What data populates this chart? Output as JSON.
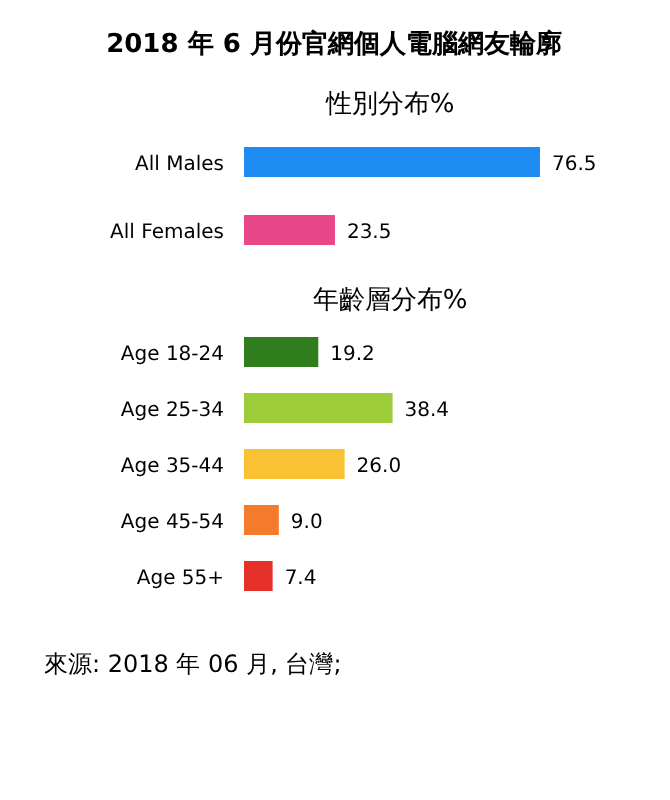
{
  "chart_data": [
    {
      "type": "bar",
      "orientation": "horizontal",
      "title": "2018 年 6 月份官網個人電腦網友輪廓",
      "subtitle": "性別分布%",
      "categories": [
        "All Males",
        "All Females"
      ],
      "values": [
        76.5,
        23.5
      ],
      "value_labels": [
        "76.5",
        "23.5"
      ],
      "colors": [
        "#1e8cf0",
        "#e8488a"
      ]
    },
    {
      "type": "bar",
      "orientation": "horizontal",
      "title": "年齡層分布%",
      "categories": [
        "Age 18-24",
        "Age 25-34",
        "Age 35-44",
        "Age 45-54",
        "Age 55+"
      ],
      "values": [
        19.2,
        38.4,
        26.0,
        9.0,
        7.4
      ],
      "value_labels": [
        "19.2",
        "38.4",
        "26.0",
        "9.0",
        "7.4"
      ],
      "colors": [
        "#2f7d1c",
        "#9dcc3a",
        "#f8c234",
        "#f47a2c",
        "#e5302a"
      ],
      "annotations": [
        "來源: 2018 年 06 月, 台灣;"
      ]
    }
  ]
}
